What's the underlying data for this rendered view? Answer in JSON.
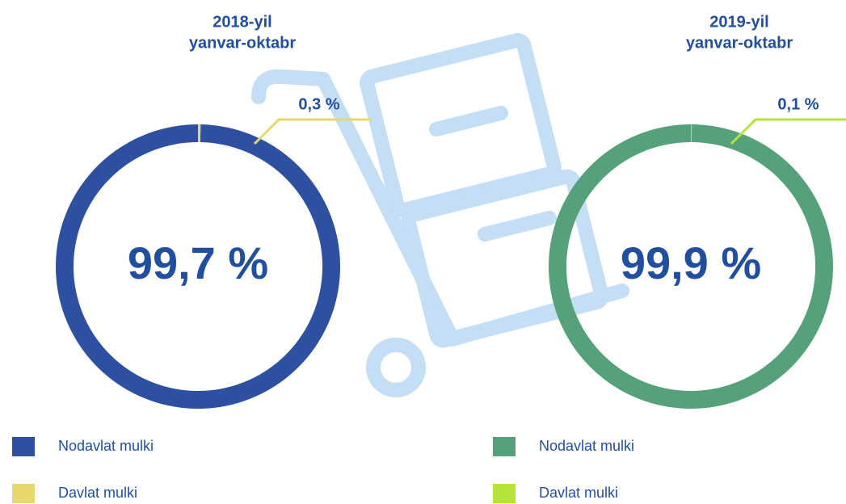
{
  "chart_data": [
    {
      "type": "donut",
      "title": "2018-yil",
      "subtitle": "yanvar-oktabr",
      "categories": [
        "Nodavlat mulki",
        "Davlat mulki"
      ],
      "values": [
        99.7,
        0.3
      ],
      "value_labels": [
        "99,7 %",
        "0,3 %"
      ],
      "colors": [
        "#2d50a0",
        "#e6d86a"
      ]
    },
    {
      "type": "donut",
      "title": "2019-yil",
      "subtitle": "yanvar-oktabr",
      "categories": [
        "Nodavlat mulki",
        "Davlat mulki"
      ],
      "values": [
        99.9,
        0.1
      ],
      "value_labels": [
        "99,9 %",
        "0,1 %"
      ],
      "colors": [
        "#55a27a",
        "#b5e33a"
      ]
    }
  ]
}
